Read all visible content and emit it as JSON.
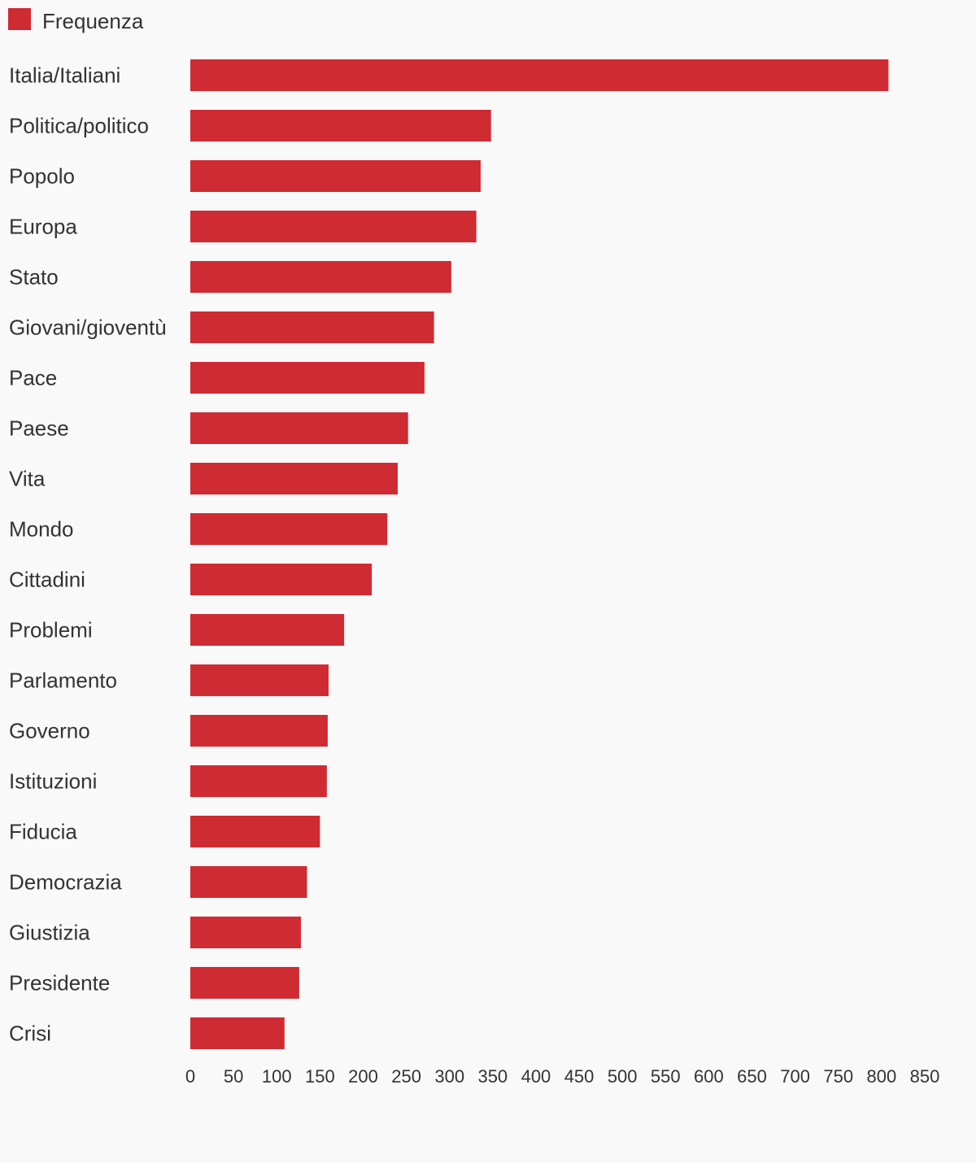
{
  "chart_data": {
    "type": "bar",
    "orientation": "horizontal",
    "categories": [
      "Italia/Italiani",
      "Politica/politico",
      "Popolo",
      "Europa",
      "Stato",
      "Giovani/gioventù",
      "Pace",
      "Paese",
      "Vita",
      "Mondo",
      "Cittadini",
      "Problemi",
      "Parlamento",
      "Governo",
      "Istituzioni",
      "Fiducia",
      "Democrazia",
      "Giustizia",
      "Presidente",
      "Crisi"
    ],
    "series": [
      {
        "name": "Frequenza",
        "color": "#cf2b32",
        "values": [
          808,
          348,
          336,
          331,
          302,
          282,
          271,
          252,
          240,
          228,
          210,
          178,
          160,
          159,
          158,
          150,
          135,
          128,
          126,
          109
        ]
      }
    ],
    "xlim": [
      0,
      850
    ],
    "xticks": [
      "0",
      "50",
      "100",
      "150",
      "200",
      "250",
      "300",
      "350",
      "400",
      "450",
      "500",
      "550",
      "600",
      "650",
      "700",
      "750",
      "800",
      "850"
    ],
    "grid": false,
    "legend_position": "top-left"
  }
}
